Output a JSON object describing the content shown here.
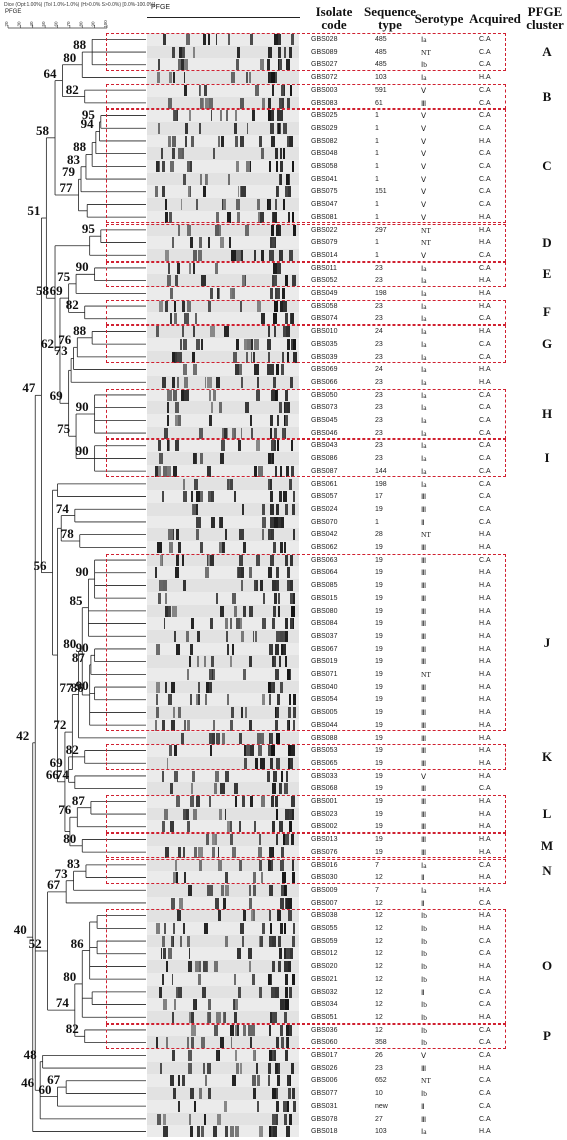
{
  "header": {
    "dice_caption": "Dice (Opt:1.00%) (Tol 1.0%-1.0%) (H>0.0% S>0.0%) [0.0%-100.0%]",
    "pfge_label": "PFGE",
    "pfge_column_label": "PFGE",
    "scale_ticks": [
      "20",
      "30",
      "40",
      "50",
      "60",
      "70",
      "80",
      "90",
      "100"
    ],
    "columns": {
      "isolate": "Isolate code",
      "sequence": "Sequence type",
      "serotype": "Serotype",
      "acquired": "Acquired",
      "cluster": "PFGE cluster"
    }
  },
  "isolates": [
    {
      "code": "GBS028",
      "st": "485",
      "serotype": "Ⅰa",
      "acq": "C.A"
    },
    {
      "code": "GBS089",
      "st": "485",
      "serotype": "NT",
      "acq": "C.A"
    },
    {
      "code": "GBS027",
      "st": "485",
      "serotype": "Ⅰb",
      "acq": "C.A"
    },
    {
      "code": "GBS072",
      "st": "103",
      "serotype": "Ⅰa",
      "acq": "H.A"
    },
    {
      "code": "GBS003",
      "st": "591",
      "serotype": "Ⅴ",
      "acq": "C.A"
    },
    {
      "code": "GBS083",
      "st": "61",
      "serotype": "Ⅲ",
      "acq": "C.A"
    },
    {
      "code": "GBS025",
      "st": "1",
      "serotype": "Ⅴ",
      "acq": "C.A"
    },
    {
      "code": "GBS029",
      "st": "1",
      "serotype": "Ⅴ",
      "acq": "C.A"
    },
    {
      "code": "GBS082",
      "st": "1",
      "serotype": "Ⅴ",
      "acq": "H.A"
    },
    {
      "code": "GBS048",
      "st": "1",
      "serotype": "Ⅴ",
      "acq": "C.A"
    },
    {
      "code": "GBS058",
      "st": "1",
      "serotype": "Ⅴ",
      "acq": "C.A"
    },
    {
      "code": "GBS041",
      "st": "1",
      "serotype": "Ⅴ",
      "acq": "C.A"
    },
    {
      "code": "GBS075",
      "st": "151",
      "serotype": "Ⅴ",
      "acq": "C.A"
    },
    {
      "code": "GBS047",
      "st": "1",
      "serotype": "Ⅴ",
      "acq": "C.A"
    },
    {
      "code": "GBS081",
      "st": "1",
      "serotype": "Ⅴ",
      "acq": "H.A"
    },
    {
      "code": "GBS022",
      "st": "297",
      "serotype": "NT",
      "acq": "H.A"
    },
    {
      "code": "GBS079",
      "st": "1",
      "serotype": "NT",
      "acq": "H.A"
    },
    {
      "code": "GBS014",
      "st": "1",
      "serotype": "Ⅴ",
      "acq": "C.A"
    },
    {
      "code": "GBS011",
      "st": "23",
      "serotype": "Ⅰa",
      "acq": "C.A"
    },
    {
      "code": "GBS052",
      "st": "23",
      "serotype": "Ⅰa",
      "acq": "H.A"
    },
    {
      "code": "GBS049",
      "st": "198",
      "serotype": "Ⅰa",
      "acq": "H.A"
    },
    {
      "code": "GBS058",
      "st": "23",
      "serotype": "Ⅰa",
      "acq": "H.A"
    },
    {
      "code": "GBS074",
      "st": "23",
      "serotype": "Ⅰa",
      "acq": "C.A"
    },
    {
      "code": "GBS010",
      "st": "24",
      "serotype": "Ⅰa",
      "acq": "H.A"
    },
    {
      "code": "GBS035",
      "st": "23",
      "serotype": "Ⅰa",
      "acq": "C.A"
    },
    {
      "code": "GBS039",
      "st": "23",
      "serotype": "Ⅰa",
      "acq": "C.A"
    },
    {
      "code": "GBS069",
      "st": "24",
      "serotype": "Ⅰa",
      "acq": "H.A"
    },
    {
      "code": "GBS066",
      "st": "23",
      "serotype": "Ⅰa",
      "acq": "H.A"
    },
    {
      "code": "GBS050",
      "st": "23",
      "serotype": "Ⅰa",
      "acq": "C.A"
    },
    {
      "code": "GBS073",
      "st": "23",
      "serotype": "Ⅰa",
      "acq": "C.A"
    },
    {
      "code": "GBS045",
      "st": "23",
      "serotype": "Ⅰa",
      "acq": "C.A"
    },
    {
      "code": "GBS046",
      "st": "23",
      "serotype": "Ⅰa",
      "acq": "C.A"
    },
    {
      "code": "GBS043",
      "st": "23",
      "serotype": "Ⅰa",
      "acq": "C.A"
    },
    {
      "code": "GBS086",
      "st": "23",
      "serotype": "Ⅰa",
      "acq": "C.A"
    },
    {
      "code": "GBS087",
      "st": "144",
      "serotype": "Ⅰa",
      "acq": "C.A"
    },
    {
      "code": "GBS061",
      "st": "198",
      "serotype": "Ⅰa",
      "acq": "C.A"
    },
    {
      "code": "GBS057",
      "st": "17",
      "serotype": "Ⅲ",
      "acq": "C.A"
    },
    {
      "code": "GBS024",
      "st": "19",
      "serotype": "Ⅲ",
      "acq": "C.A"
    },
    {
      "code": "GBS070",
      "st": "1",
      "serotype": "Ⅱ",
      "acq": "C.A"
    },
    {
      "code": "GBS042",
      "st": "28",
      "serotype": "NT",
      "acq": "H.A"
    },
    {
      "code": "GBS062",
      "st": "19",
      "serotype": "Ⅲ",
      "acq": "H.A"
    },
    {
      "code": "GBS063",
      "st": "19",
      "serotype": "Ⅲ",
      "acq": "C.A"
    },
    {
      "code": "GBS064",
      "st": "19",
      "serotype": "Ⅲ",
      "acq": "H.A"
    },
    {
      "code": "GBS085",
      "st": "19",
      "serotype": "Ⅲ",
      "acq": "H.A"
    },
    {
      "code": "GBS015",
      "st": "19",
      "serotype": "Ⅲ",
      "acq": "H.A"
    },
    {
      "code": "GBS080",
      "st": "19",
      "serotype": "Ⅲ",
      "acq": "H.A"
    },
    {
      "code": "GBS084",
      "st": "19",
      "serotype": "Ⅲ",
      "acq": "H.A"
    },
    {
      "code": "GBS037",
      "st": "19",
      "serotype": "Ⅲ",
      "acq": "H.A"
    },
    {
      "code": "GBS067",
      "st": "19",
      "serotype": "Ⅲ",
      "acq": "H.A"
    },
    {
      "code": "GBS019",
      "st": "19",
      "serotype": "Ⅲ",
      "acq": "H.A"
    },
    {
      "code": "GBS071",
      "st": "19",
      "serotype": "NT",
      "acq": "H.A"
    },
    {
      "code": "GBS040",
      "st": "19",
      "serotype": "Ⅲ",
      "acq": "H.A"
    },
    {
      "code": "GBS054",
      "st": "19",
      "serotype": "Ⅲ",
      "acq": "H.A"
    },
    {
      "code": "GBS005",
      "st": "19",
      "serotype": "Ⅲ",
      "acq": "H.A"
    },
    {
      "code": "GBS044",
      "st": "19",
      "serotype": "Ⅲ",
      "acq": "H.A"
    },
    {
      "code": "GBS088",
      "st": "19",
      "serotype": "Ⅲ",
      "acq": "H.A"
    },
    {
      "code": "GBS053",
      "st": "19",
      "serotype": "Ⅲ",
      "acq": "H.A"
    },
    {
      "code": "GBS065",
      "st": "19",
      "serotype": "Ⅲ",
      "acq": "H.A"
    },
    {
      "code": "GBS033",
      "st": "19",
      "serotype": "Ⅴ",
      "acq": "H.A"
    },
    {
      "code": "GBS068",
      "st": "19",
      "serotype": "Ⅲ",
      "acq": "C.A"
    },
    {
      "code": "GBS001",
      "st": "19",
      "serotype": "Ⅲ",
      "acq": "H.A"
    },
    {
      "code": "GBS023",
      "st": "19",
      "serotype": "Ⅲ",
      "acq": "H.A"
    },
    {
      "code": "GBS002",
      "st": "19",
      "serotype": "Ⅲ",
      "acq": "H.A"
    },
    {
      "code": "GBS013",
      "st": "19",
      "serotype": "Ⅲ",
      "acq": "H.A"
    },
    {
      "code": "GBS076",
      "st": "19",
      "serotype": "Ⅲ",
      "acq": "H.A"
    },
    {
      "code": "GBS016",
      "st": "7",
      "serotype": "Ⅰa",
      "acq": "C.A"
    },
    {
      "code": "GBS030",
      "st": "12",
      "serotype": "Ⅱ",
      "acq": "H.A"
    },
    {
      "code": "GBS009",
      "st": "7",
      "serotype": "Ⅰa",
      "acq": "H.A"
    },
    {
      "code": "GBS007",
      "st": "12",
      "serotype": "Ⅱ",
      "acq": "C.A"
    },
    {
      "code": "GBS038",
      "st": "12",
      "serotype": "Ⅰb",
      "acq": "H.A"
    },
    {
      "code": "GBS055",
      "st": "12",
      "serotype": "Ⅰb",
      "acq": "H.A"
    },
    {
      "code": "GBS059",
      "st": "12",
      "serotype": "Ⅰb",
      "acq": "C.A"
    },
    {
      "code": "GBS012",
      "st": "12",
      "serotype": "Ⅰb",
      "acq": "C.A"
    },
    {
      "code": "GBS020",
      "st": "12",
      "serotype": "Ⅰb",
      "acq": "H.A"
    },
    {
      "code": "GBS021",
      "st": "12",
      "serotype": "Ⅰb",
      "acq": "H.A"
    },
    {
      "code": "GBS032",
      "st": "12",
      "serotype": "Ⅱ",
      "acq": "C.A"
    },
    {
      "code": "GBS034",
      "st": "12",
      "serotype": "Ⅰb",
      "acq": "C.A"
    },
    {
      "code": "GBS051",
      "st": "12",
      "serotype": "Ⅰb",
      "acq": "H.A"
    },
    {
      "code": "GBS036",
      "st": "12",
      "serotype": "Ⅰb",
      "acq": "C.A"
    },
    {
      "code": "GBS060",
      "st": "358",
      "serotype": "Ⅰb",
      "acq": "C.A"
    },
    {
      "code": "GBS017",
      "st": "26",
      "serotype": "Ⅴ",
      "acq": "C.A"
    },
    {
      "code": "GBS026",
      "st": "23",
      "serotype": "Ⅲ",
      "acq": "H.A"
    },
    {
      "code": "GBS006",
      "st": "652",
      "serotype": "NT",
      "acq": "C.A"
    },
    {
      "code": "GBS077",
      "st": "10",
      "serotype": "Ⅰb",
      "acq": "C.A"
    },
    {
      "code": "GBS031",
      "st": "new",
      "serotype": "Ⅱ",
      "acq": "C.A"
    },
    {
      "code": "GBS078",
      "st": "27",
      "serotype": "Ⅲ",
      "acq": "C.A"
    },
    {
      "code": "GBS018",
      "st": "103",
      "serotype": "Ⅰa",
      "acq": "H.A"
    }
  ],
  "clusters": [
    {
      "label": "A",
      "first": 0,
      "last": 2
    },
    {
      "label": "B",
      "first": 4,
      "last": 5
    },
    {
      "label": "C",
      "first": 6,
      "last": 14
    },
    {
      "label": "D",
      "first": 15,
      "last": 17
    },
    {
      "label": "E",
      "first": 18,
      "last": 19
    },
    {
      "label": "F",
      "first": 21,
      "last": 22
    },
    {
      "label": "G",
      "first": 23,
      "last": 25
    },
    {
      "label": "H",
      "first": 28,
      "last": 31
    },
    {
      "label": "I",
      "first": 32,
      "last": 34
    },
    {
      "label": "J",
      "first": 41,
      "last": 54
    },
    {
      "label": "K",
      "first": 56,
      "last": 57
    },
    {
      "label": "L",
      "first": 60,
      "last": 62
    },
    {
      "label": "M",
      "first": 63,
      "last": 64
    },
    {
      "label": "N",
      "first": 65,
      "last": 66
    },
    {
      "label": "O",
      "first": 69,
      "last": 77
    },
    {
      "label": "P",
      "first": 78,
      "last": 79
    }
  ],
  "tree_nodes": [
    {
      "id": "n88a",
      "sim": 88,
      "children": [
        0,
        1,
        2
      ],
      "label": "88"
    },
    {
      "id": "n80a",
      "sim": 80,
      "children": [
        "n88a",
        3
      ],
      "label": "80"
    },
    {
      "id": "n82a",
      "sim": 82,
      "children": [
        4,
        5
      ],
      "label": "82"
    },
    {
      "id": "n64",
      "sim": 64,
      "children": [
        "n80a",
        "n82a"
      ],
      "label": "64"
    },
    {
      "id": "n95a",
      "sim": 95,
      "children": [
        6,
        7
      ],
      "label": "95"
    },
    {
      "id": "n94",
      "sim": 94,
      "children": [
        "n95a",
        8
      ],
      "label": "94"
    },
    {
      "id": "nC1",
      "sim": 91,
      "children": [
        "n94",
        9
      ],
      "label": ""
    },
    {
      "id": "n88b",
      "sim": 88,
      "children": [
        "nC1",
        10
      ],
      "label": "88"
    },
    {
      "id": "n83a",
      "sim": 83,
      "children": [
        "n88b",
        11
      ],
      "label": "83"
    },
    {
      "id": "n79",
      "sim": 79,
      "children": [
        "n83a",
        12
      ],
      "label": "79"
    },
    {
      "id": "nC2",
      "sim": 84,
      "children": [
        13,
        14
      ],
      "label": ""
    },
    {
      "id": "n77a",
      "sim": 77,
      "children": [
        "n79",
        "nC2"
      ],
      "label": "77"
    },
    {
      "id": "n58a",
      "sim": 58,
      "children": [
        "n64",
        "n77a"
      ],
      "label": "58"
    },
    {
      "id": "n95b",
      "sim": 95,
      "children": [
        15,
        16
      ],
      "label": "95"
    },
    {
      "id": "nD",
      "sim": 86,
      "children": [
        "n95b",
        17
      ],
      "label": ""
    },
    {
      "id": "n90a",
      "sim": 90,
      "children": [
        18,
        19
      ],
      "label": "90"
    },
    {
      "id": "n75a",
      "sim": 75,
      "children": [
        "n90a",
        20
      ],
      "label": "75"
    },
    {
      "id": "n82b",
      "sim": 82,
      "children": [
        21,
        22
      ],
      "label": "82"
    },
    {
      "id": "n69a",
      "sim": 69,
      "children": [
        "n75a",
        "n82b"
      ],
      "label": "69"
    },
    {
      "id": "n88c",
      "sim": 88,
      "children": [
        23,
        24
      ],
      "label": "88"
    },
    {
      "id": "n76a",
      "sim": 76,
      "children": [
        "n88c",
        25
      ],
      "label": "76"
    },
    {
      "id": "n73a",
      "sim": 73,
      "children": [
        "n76a",
        26
      ],
      "label": "73"
    },
    {
      "id": "nG2",
      "sim": 71,
      "children": [
        "n73a",
        27
      ],
      "label": ""
    },
    {
      "id": "n90b",
      "sim": 90,
      "children": [
        28,
        29,
        30,
        31
      ],
      "label": "90"
    },
    {
      "id": "n90c",
      "sim": 90,
      "children": [
        32,
        33,
        34
      ],
      "label": "90"
    },
    {
      "id": "n75b",
      "sim": 75,
      "children": [
        "n90b",
        "n90c"
      ],
      "label": "75"
    },
    {
      "id": "n69b",
      "sim": 69,
      "children": [
        "nG2",
        "n75b"
      ],
      "label": "69"
    },
    {
      "id": "n62",
      "sim": 62,
      "children": [
        "n69a",
        "n69b"
      ],
      "label": "62"
    },
    {
      "id": "n58b",
      "sim": 58,
      "children": [
        "nD",
        "n62"
      ],
      "label": "58"
    },
    {
      "id": "nX1",
      "sim": 60,
      "children": [
        35,
        36
      ],
      "label": ""
    },
    {
      "id": "n74a",
      "sim": 74,
      "children": [
        37,
        38
      ],
      "label": "74"
    },
    {
      "id": "n78",
      "sim": 78,
      "children": [
        39,
        40
      ],
      "label": "78"
    },
    {
      "id": "nJ1",
      "sim": 90,
      "children": [
        41,
        42,
        43,
        44
      ],
      "label": "90"
    },
    {
      "id": "n85",
      "sim": 85,
      "children": [
        "nJ1",
        45,
        46,
        47
      ],
      "label": "85"
    },
    {
      "id": "nJ2",
      "sim": 90,
      "children": [
        48,
        49
      ],
      "label": "90"
    },
    {
      "id": "n87a",
      "sim": 87,
      "children": [
        "nJ2",
        50
      ],
      "label": "87"
    },
    {
      "id": "nJ3",
      "sim": 90,
      "children": [
        51,
        52
      ],
      "label": "90"
    },
    {
      "id": "n86a",
      "sim": 86,
      "children": [
        "n87a",
        "nJ3",
        53,
        54
      ],
      "label": "86"
    },
    {
      "id": "n80b",
      "sim": 80,
      "children": [
        "n85",
        "n86a"
      ],
      "label": "80"
    },
    {
      "id": "n77b",
      "sim": 77,
      "children": [
        "n80b",
        55
      ],
      "label": "77"
    },
    {
      "id": "n82c",
      "sim": 82,
      "children": [
        56,
        57
      ],
      "label": "82"
    },
    {
      "id": "n74b",
      "sim": 74,
      "children": [
        58,
        59
      ],
      "label": "74"
    },
    {
      "id": "n69c",
      "sim": 69,
      "children": [
        "n82c",
        "n74b"
      ],
      "label": "69"
    },
    {
      "id": "n72",
      "sim": 72,
      "children": [
        "n77b",
        "n69c"
      ],
      "label": "72"
    },
    {
      "id": "n87b",
      "sim": 87,
      "children": [
        60,
        61
      ],
      "label": "87"
    },
    {
      "id": "n76b",
      "sim": 76,
      "children": [
        "n87b",
        62
      ],
      "label": "76"
    },
    {
      "id": "n80c",
      "sim": 80,
      "children": [
        63,
        64
      ],
      "label": "80"
    },
    {
      "id": "nLM",
      "sim": 70,
      "children": [
        "n76b",
        "n80c"
      ],
      "label": ""
    },
    {
      "id": "n66",
      "sim": 66,
      "children": [
        "n72",
        "nLM"
      ],
      "label": "66"
    },
    {
      "id": "nW",
      "sim": 63,
      "children": [
        "n74a",
        "n78"
      ],
      "label": ""
    },
    {
      "id": "nW2",
      "sim": 60,
      "children": [
        "nW",
        "n66"
      ],
      "label": ""
    },
    {
      "id": "n56",
      "sim": 56,
      "children": [
        "nX1",
        "nW2"
      ],
      "label": "56"
    },
    {
      "id": "n51",
      "sim": 51,
      "children": [
        "n58a",
        "n58b"
      ],
      "label": "51"
    },
    {
      "id": "n47",
      "sim": 47,
      "children": [
        "n51",
        "n56"
      ],
      "label": "47"
    },
    {
      "id": "n83b",
      "sim": 83,
      "children": [
        65,
        66
      ],
      "label": "83"
    },
    {
      "id": "n73b",
      "sim": 73,
      "children": [
        "n83b",
        67
      ],
      "label": "73"
    },
    {
      "id": "n67a",
      "sim": 67,
      "children": [
        "n73b",
        68
      ],
      "label": "67"
    },
    {
      "id": "nO1",
      "sim": 92,
      "children": [
        69,
        70
      ],
      "label": ""
    },
    {
      "id": "nO2",
      "sim": 92,
      "children": [
        71,
        72
      ],
      "label": ""
    },
    {
      "id": "n86b",
      "sim": 86,
      "children": [
        "nO1",
        "nO2",
        73,
        74
      ],
      "label": "86"
    },
    {
      "id": "nO3",
      "sim": 88,
      "children": [
        75,
        76
      ],
      "label": ""
    },
    {
      "id": "n80d",
      "sim": 80,
      "children": [
        "n86b",
        "nO3",
        77
      ],
      "label": "80"
    },
    {
      "id": "n82d",
      "sim": 82,
      "children": [
        78,
        79
      ],
      "label": "82"
    },
    {
      "id": "n74c",
      "sim": 74,
      "children": [
        "n80d",
        "n82d"
      ],
      "label": "74"
    },
    {
      "id": "n52",
      "sim": 52,
      "children": [
        "n67a",
        "n74c"
      ],
      "label": "52"
    },
    {
      "id": "n48",
      "sim": 48,
      "children": [
        80,
        81
      ],
      "label": "48"
    },
    {
      "id": "n67b",
      "sim": 67,
      "children": [
        82,
        83
      ],
      "label": "67"
    },
    {
      "id": "n60",
      "sim": 60,
      "children": [
        "n67b",
        84
      ],
      "label": "60"
    },
    {
      "id": "n46",
      "sim": 46,
      "children": [
        "n48",
        "n60",
        85
      ],
      "label": "46"
    },
    {
      "id": "n42",
      "sim": 42,
      "children": [
        "n47",
        "n52",
        "n46"
      ],
      "label": "42"
    },
    {
      "id": "n40",
      "sim": 40,
      "children": [
        "n42",
        86
      ],
      "label": "40"
    }
  ]
}
